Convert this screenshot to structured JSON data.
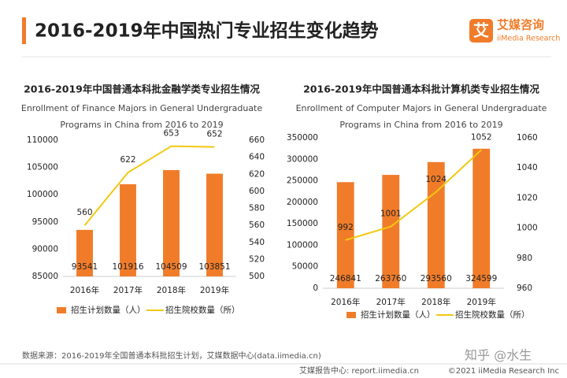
{
  "header": {
    "title": "2016-2019年中国热门专业招生变化趋势",
    "logo_mark": "艾",
    "logo_name": "艾媒咨询",
    "logo_sub": "iiMedia Research"
  },
  "chart_data": [
    {
      "type": "bar_line",
      "title": "2016-2019年中国普通本科批金融学类专业招生情况",
      "subtitle": [
        "Enrollment of Finance Majors in General Undergraduate",
        "Programs in China from 2016 to 2019"
      ],
      "categories": [
        "2016年",
        "2017年",
        "2018年",
        "2019年"
      ],
      "series": [
        {
          "name": "招生计划数量（人）",
          "type": "bar",
          "color": "#f07c2a",
          "values": [
            93541,
            101916,
            104509,
            103851
          ]
        },
        {
          "name": "招生院校数量（所）",
          "type": "line",
          "axis": "y2",
          "color": "#f2c811",
          "values": [
            560,
            622,
            653,
            652
          ]
        }
      ],
      "ylim": [
        85000,
        110000
      ],
      "yticks": [
        85000,
        90000,
        95000,
        100000,
        105000,
        110000
      ],
      "y2lim": [
        500,
        660
      ],
      "y2ticks": [
        500,
        520,
        540,
        560,
        580,
        600,
        620,
        640,
        660
      ]
    },
    {
      "type": "bar_line",
      "title": "2016-2019年中国普通本科批计算机类专业招生情况",
      "subtitle": [
        "Enrollment of Computer Majors in General Undergraduate",
        "Programs in China from 2016 to 2019"
      ],
      "categories": [
        "2016年",
        "2017年",
        "2018年",
        "2019年"
      ],
      "series": [
        {
          "name": "招生计划数量（人）",
          "type": "bar",
          "color": "#f07c2a",
          "values": [
            246841,
            263760,
            293560,
            324599
          ]
        },
        {
          "name": "招生院校数量（所）",
          "type": "line",
          "axis": "y2",
          "color": "#f2c811",
          "values": [
            992,
            1001,
            1024,
            1052
          ]
        }
      ],
      "ylim": [
        0,
        350000
      ],
      "yticks": [
        0,
        50000,
        100000,
        150000,
        200000,
        250000,
        300000,
        350000
      ],
      "y2lim": [
        960,
        1060
      ],
      "y2ticks": [
        960,
        980,
        1000,
        1020,
        1040,
        1060
      ]
    }
  ],
  "source": "数据来源：2016-2019年全国普通本科批招生计划，艾媒数据中心(data.iimedia.cn)",
  "watermark": "知乎 @水生",
  "footer": {
    "left": "艾媒报告中心: report.iimedia.cn",
    "right": "©2021  iiMedia Research  Inc"
  }
}
